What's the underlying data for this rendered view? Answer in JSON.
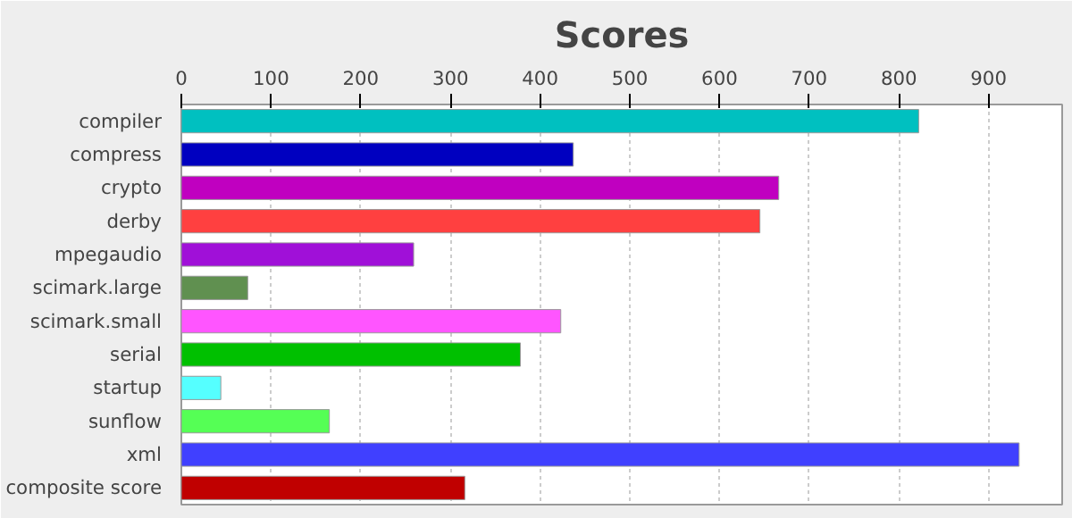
{
  "chart_data": {
    "type": "bar",
    "orientation": "horizontal",
    "title": "Scores",
    "categories": [
      "compiler",
      "compress",
      "crypto",
      "derby",
      "mpegaudio",
      "scimark.large",
      "scimark.small",
      "serial",
      "startup",
      "sunflow",
      "xml",
      "composite score"
    ],
    "values": [
      822,
      437,
      666,
      645,
      259,
      74,
      423,
      378,
      44,
      165,
      934,
      316
    ],
    "colors": [
      "#00c0c0",
      "#0000c0",
      "#c000c0",
      "#ff4040",
      "#a010d8",
      "#609050",
      "#ff55ff",
      "#00c000",
      "#55ffff",
      "#55ff55",
      "#4040ff",
      "#c00000"
    ],
    "xlim": [
      0,
      982
    ],
    "xticks": [
      0,
      100,
      200,
      300,
      400,
      500,
      600,
      700,
      800,
      900
    ],
    "grid": "x"
  }
}
